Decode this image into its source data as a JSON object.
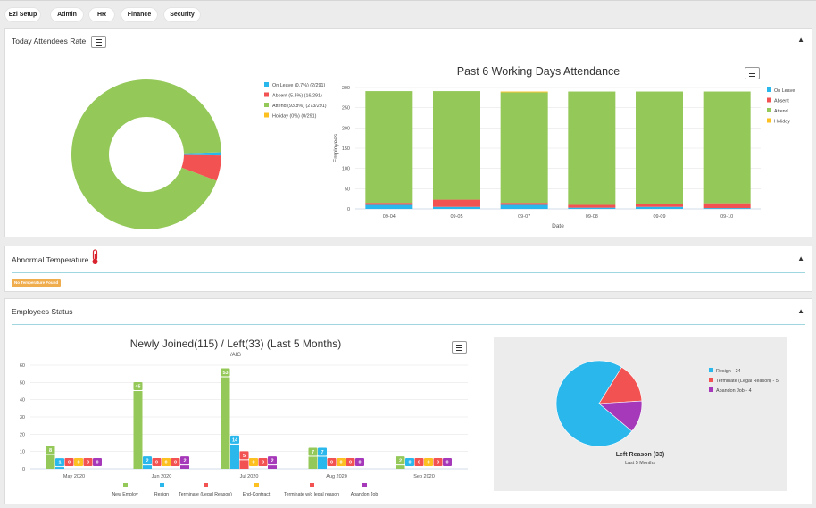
{
  "nav": {
    "items": [
      "Ezi Setup",
      "Admin",
      "HR",
      "Finance",
      "Security"
    ]
  },
  "attendees_panel": {
    "title": "Today Attendees Rate"
  },
  "temperature_panel": {
    "title": "Abnormal Temperature",
    "badge": "No Temperature Found"
  },
  "employees_panel": {
    "title": "Employees Status"
  },
  "colors": {
    "on_leave": "#2ab7ec",
    "absent": "#f25252",
    "attend": "#94c859",
    "holiday": "#fdc021",
    "new": "#94c859",
    "resign": "#2ab7ec",
    "terminate_legal": "#f25252",
    "end_contract": "#fdc021",
    "terminate_wo": "#f25252",
    "abandon": "#a639b9"
  },
  "chart_data": [
    {
      "type": "pie",
      "title": "",
      "donut": true,
      "legend_position": "right",
      "labels": [
        "On Leave (0.7%) (2/291)",
        "Absent (5.5%) (16/291)",
        "Attend (93.8%) (273/291)",
        "Holiday (0%) (0/291)"
      ],
      "values": [
        2,
        16,
        273,
        0
      ]
    },
    {
      "type": "bar",
      "stacked": true,
      "title": "Past 6 Working Days Attendance",
      "xlabel": "Date",
      "ylabel": "Employees",
      "ylim": [
        0,
        300
      ],
      "yticks": [
        0,
        50,
        100,
        150,
        200,
        250,
        300
      ],
      "categories": [
        "09-04",
        "09-05",
        "09-07",
        "09-08",
        "09-09",
        "09-10"
      ],
      "legend_position": "right",
      "series": [
        {
          "name": "On Leave",
          "values": [
            10,
            5,
            10,
            3,
            5,
            2
          ]
        },
        {
          "name": "Absent",
          "values": [
            5,
            18,
            5,
            7,
            8,
            12
          ]
        },
        {
          "name": "Attend",
          "values": [
            276,
            268,
            273,
            280,
            277,
            276
          ]
        },
        {
          "name": "Holiday",
          "values": [
            0,
            0,
            2,
            0,
            0,
            0
          ]
        }
      ],
      "grid": true
    },
    {
      "type": "bar",
      "title": "Newly Joined(115) / Left(33) (Last 5 Months)",
      "subtitle": "/AIG",
      "ylim": [
        0,
        60
      ],
      "yticks": [
        0,
        10,
        20,
        30,
        40,
        50,
        60
      ],
      "categories": [
        "May 2020",
        "Jun 2020",
        "Jul 2020",
        "Aug 2020",
        "Sep 2020"
      ],
      "legend_position": "bottom",
      "series": [
        {
          "name": "New Employ",
          "values": [
            8,
            45,
            53,
            7,
            2
          ]
        },
        {
          "name": "Resign",
          "values": [
            1,
            2,
            14,
            7,
            0
          ]
        },
        {
          "name": "Terminate (Legal Reason)",
          "values": [
            0,
            0,
            5,
            0,
            0
          ]
        },
        {
          "name": "End-Contract",
          "values": [
            0,
            0,
            0,
            0,
            0
          ]
        },
        {
          "name": "Terminate w/o legal reason",
          "values": [
            0,
            0,
            0,
            0,
            0
          ]
        },
        {
          "name": "Abandon Job",
          "values": [
            0,
            2,
            2,
            0,
            0
          ]
        }
      ],
      "grid": true
    },
    {
      "type": "pie",
      "title": "Left Reason (33)",
      "subtitle": "Last 5 Months",
      "legend_position": "right",
      "labels": [
        "Resign - 24",
        "Terminate (Legal Reason) - 5",
        "Abandon Job - 4"
      ],
      "values": [
        24,
        5,
        4
      ]
    }
  ]
}
